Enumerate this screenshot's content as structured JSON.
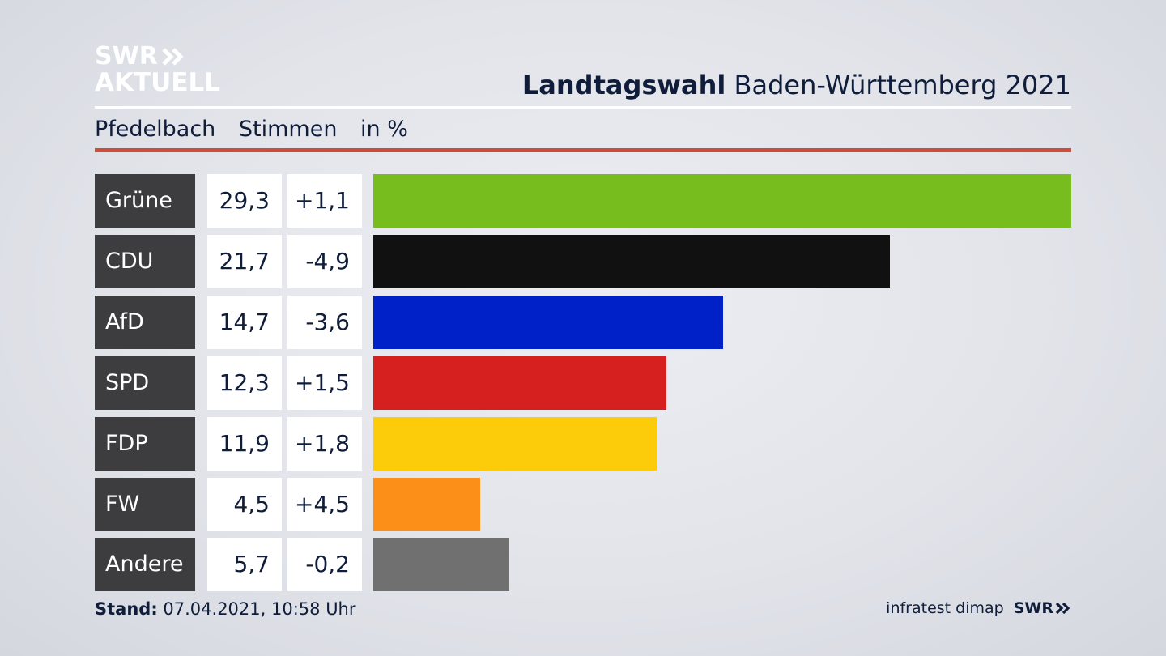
{
  "brand": {
    "line1": "SWR",
    "line2": "AKTUELL"
  },
  "header": {
    "title_bold": "Landtagswahl",
    "title_rest": "Baden-Württemberg 2021"
  },
  "subheader": {
    "place": "Pfedelbach",
    "measure": "Stimmen",
    "unit": "in %"
  },
  "colors": {
    "rule_red": "#cf4b3a",
    "label_bg": "#3d3d3f"
  },
  "chart_data": {
    "type": "bar",
    "orientation": "horizontal",
    "categories": [
      "Grüne",
      "CDU",
      "AfD",
      "SPD",
      "FDP",
      "FW",
      "Andere"
    ],
    "values": [
      29.3,
      21.7,
      14.7,
      12.3,
      11.9,
      4.5,
      5.7
    ],
    "value_labels": [
      "29,3",
      "21,7",
      "14,7",
      "12,3",
      "11,9",
      "4,5",
      "5,7"
    ],
    "diff_labels": [
      "+1,1",
      "-4,9",
      "-3,6",
      "+1,5",
      "+1,8",
      "+4,5",
      "-0,2"
    ],
    "colors": [
      "#77bd1e",
      "#111111",
      "#0021c7",
      "#d61f1f",
      "#fccb0a",
      "#fb8f17",
      "#707070"
    ],
    "xlim": [
      0,
      29.3
    ]
  },
  "footer": {
    "stand_label": "Stand:",
    "stand_value": "07.04.2021, 10:58 Uhr",
    "source": "infratest dimap",
    "brand": "SWR"
  }
}
